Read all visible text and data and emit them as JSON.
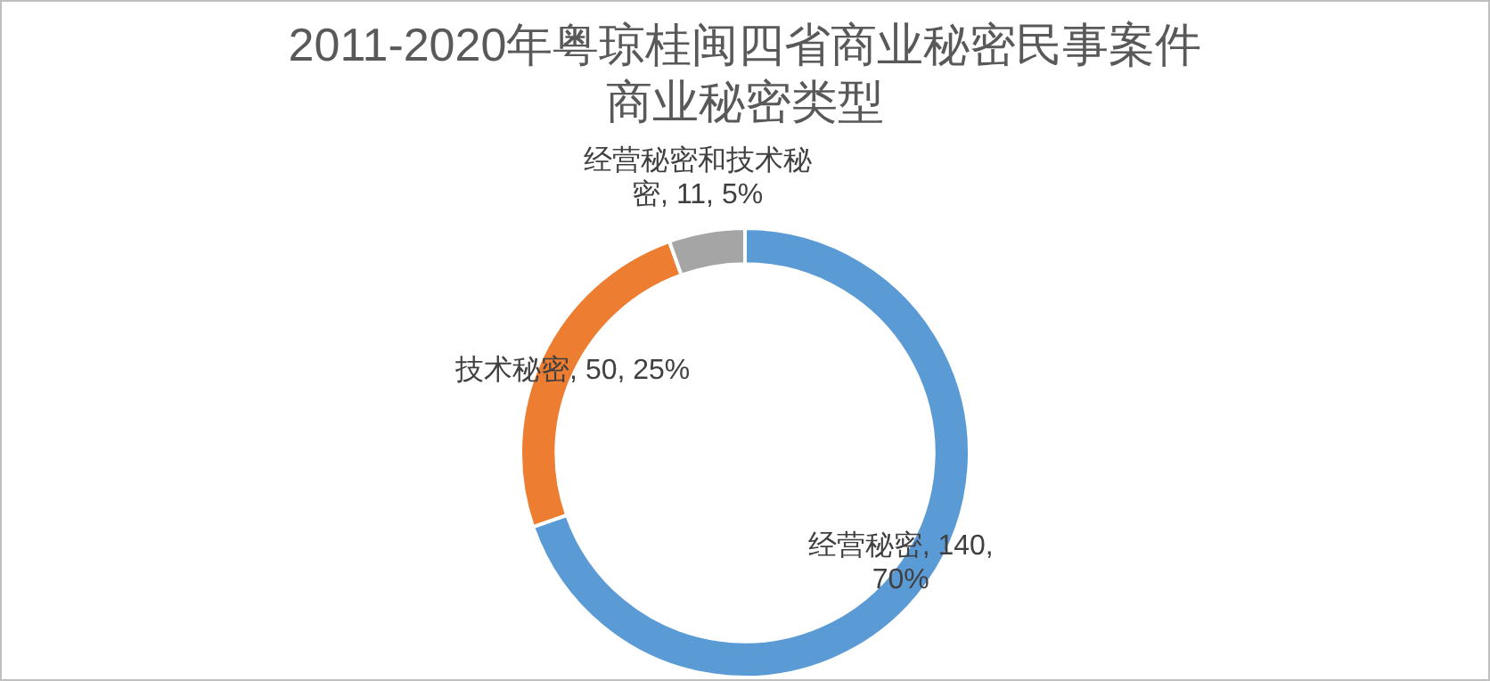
{
  "chart_data": {
    "type": "donut",
    "title": "2011-2020年粤琼桂闽四省商业秘密民事案件商业秘密类型",
    "categories": [
      "经营秘密",
      "技术秘密",
      "经营秘密和技术秘密"
    ],
    "values": [
      140,
      50,
      11
    ],
    "colors": [
      "#5b9bd5",
      "#ed7d31",
      "#a5a5a5"
    ],
    "value_labels": [
      "140, 70%",
      "50, 25%",
      "11, 5%"
    ],
    "legend": false
  }
}
